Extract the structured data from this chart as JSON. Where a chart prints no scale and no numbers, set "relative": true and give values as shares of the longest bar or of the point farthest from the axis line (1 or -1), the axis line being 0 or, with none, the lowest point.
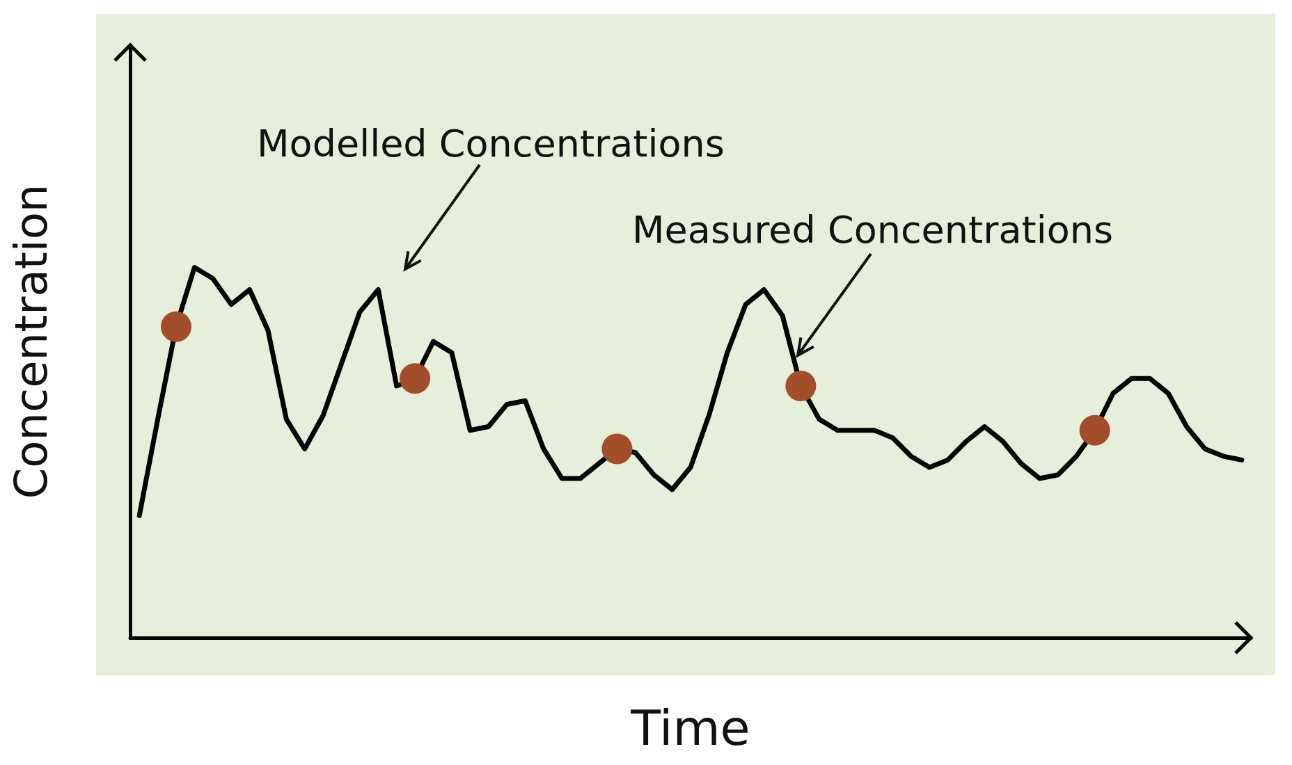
{
  "chart_data": {
    "type": "line",
    "relative": true,
    "xlabel": "Time",
    "ylabel": "Concentration",
    "annotations": [
      "Modelled Concentrations",
      "Measured Concentrations"
    ],
    "categories": [
      null,
      null,
      null,
      null,
      null,
      null,
      null,
      null,
      null,
      null,
      null,
      null,
      null,
      null,
      null,
      null,
      null,
      null,
      null,
      null,
      null,
      null,
      null,
      null,
      null,
      null,
      null,
      null,
      null,
      null,
      null,
      null,
      null,
      null,
      null,
      null,
      null,
      null,
      null,
      null,
      null,
      null,
      null,
      null,
      null,
      null,
      null,
      null,
      null,
      null,
      null,
      null,
      null,
      null,
      null,
      null,
      null,
      null,
      null,
      null,
      null
    ],
    "series": [
      {
        "color": "#000000",
        "values": [
          0.33,
          0.59,
          0.84,
          1,
          0.97,
          0.9,
          0.94,
          0.83,
          0.59,
          0.51,
          0.6,
          0.74,
          0.88,
          0.94,
          0.68,
          0.7,
          0.8,
          0.77,
          0.56,
          0.57,
          0.63,
          0.64,
          0.51,
          0.43,
          0.43,
          0.47,
          0.51,
          0.5,
          0.44,
          0.4,
          0.46,
          0.6,
          0.77,
          0.9,
          0.94,
          0.87,
          0.68,
          0.59,
          0.56,
          0.56,
          0.56,
          0.54,
          0.49,
          0.46,
          0.48,
          0.53,
          0.57,
          0.53,
          0.47,
          0.43,
          0.44,
          0.49,
          0.56,
          0.66,
          0.7,
          0.7,
          0.66,
          0.57,
          0.51,
          0.49,
          0.48
        ],
        "colors": [
          null,
          null,
          "#a34e2a",
          null,
          null,
          null,
          null,
          null,
          null,
          null,
          null,
          null,
          null,
          null,
          null,
          "#a34e2a",
          null,
          null,
          null,
          null,
          null,
          null,
          null,
          null,
          null,
          null,
          "#a34e2a",
          null,
          null,
          null,
          null,
          null,
          null,
          null,
          null,
          null,
          "#a34e2a",
          null,
          null,
          null,
          null,
          null,
          null,
          null,
          null,
          null,
          null,
          null,
          null,
          null,
          null,
          null,
          "#a34e2a",
          null,
          null,
          null,
          null,
          null,
          null,
          null,
          null
        ]
      }
    ],
    "grid": false
  }
}
